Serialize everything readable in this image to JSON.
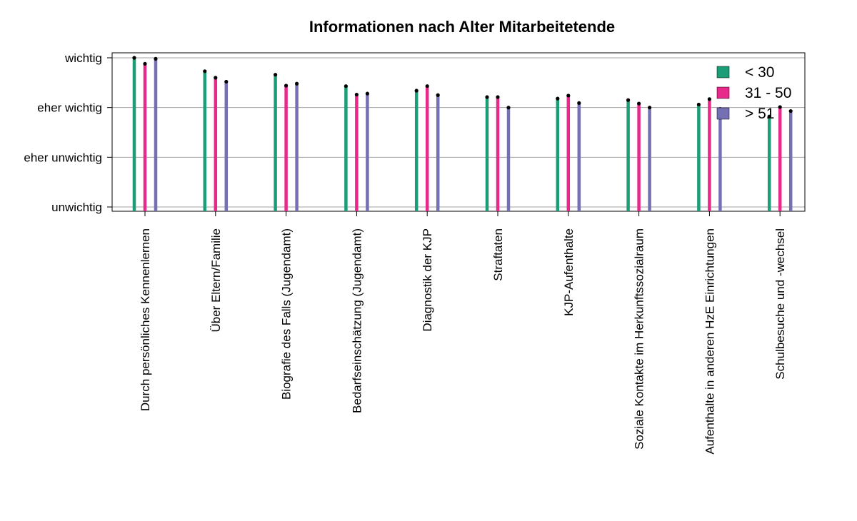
{
  "chart_data": {
    "type": "bar",
    "title": "Informationen nach Alter Mitarbeitetende",
    "xlabel": "",
    "ylabel": "",
    "ylim": [
      1,
      4
    ],
    "y_ticks": [
      {
        "value": 4,
        "label": "wichtig"
      },
      {
        "value": 3,
        "label": "eher wichtig"
      },
      {
        "value": 2,
        "label": "eher unwichtig"
      },
      {
        "value": 1,
        "label": "unwichtig"
      }
    ],
    "grid": true,
    "legend_position": "top-right",
    "categories": [
      "Durch persönliches Kennenlernen",
      "Über Eltern/Familie",
      "Biografie des Falls (Jugendamt)",
      "Bedarfseinschätzung (Jugendamt)",
      "Diagnostik der KJP",
      "Straftaten",
      "KJP-Aufenthalte",
      "Soziale Kontakte im Herkunftssozialraum",
      "Aufenthalte in anderen HzE Einrichtungen",
      "Schulbesuche und -wechsel"
    ],
    "series": [
      {
        "name": "< 30",
        "color": "#1b9e77",
        "values": [
          4.0,
          3.73,
          3.66,
          3.43,
          3.34,
          3.21,
          3.18,
          3.15,
          3.06,
          2.82
        ]
      },
      {
        "name": "31 - 50",
        "color": "#e7298a",
        "values": [
          3.88,
          3.6,
          3.44,
          3.26,
          3.43,
          3.21,
          3.24,
          3.08,
          3.17,
          3.01
        ]
      },
      {
        "name": "> 51",
        "color": "#7570b3",
        "values": [
          3.98,
          3.52,
          3.48,
          3.28,
          3.25,
          3.0,
          3.09,
          3.0,
          2.97,
          2.93
        ]
      }
    ]
  }
}
